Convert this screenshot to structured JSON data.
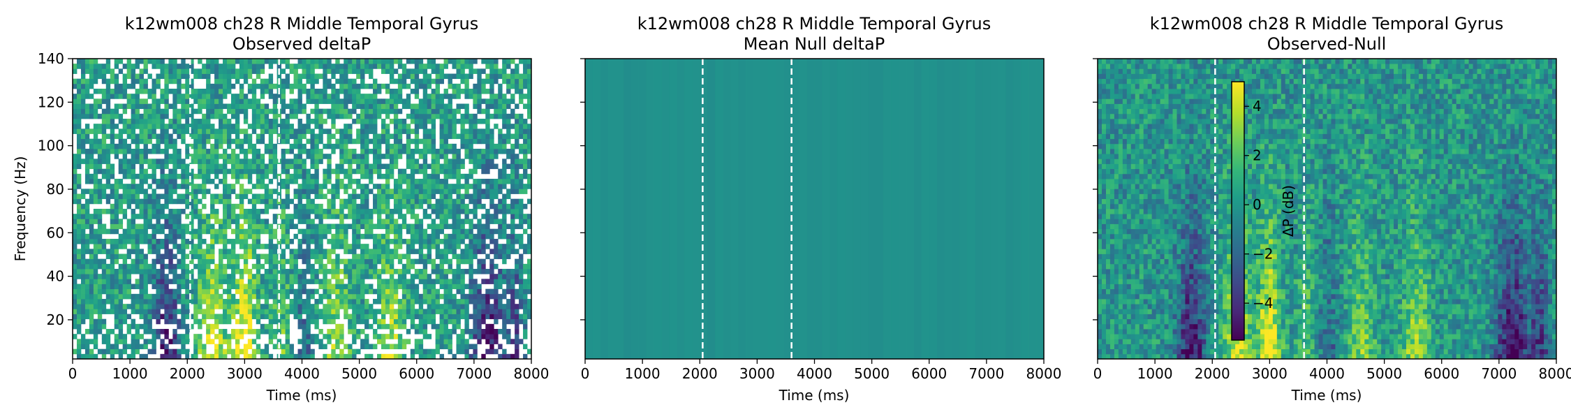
{
  "chart_data": [
    {
      "type": "heatmap",
      "title": "k12wm008 ch28 R Middle Temporal Gyrus",
      "subtitle": "Observed deltaP",
      "xlabel": "Time (ms)",
      "ylabel": "Frequency (Hz)",
      "xlim": [
        0,
        8000
      ],
      "ylim": [
        2,
        140
      ],
      "xticks": [
        "0",
        "1000",
        "2000",
        "3000",
        "4000",
        "5000",
        "6000",
        "7000",
        "8000"
      ],
      "yticks": [
        "20",
        "40",
        "60",
        "80",
        "100",
        "120",
        "140"
      ],
      "event_markers_ms": [
        2050,
        3600
      ],
      "colormap": "viridis",
      "masked_non_significant": true
    },
    {
      "type": "heatmap",
      "title": "k12wm008 ch28 R Middle Temporal Gyrus",
      "subtitle": "Mean Null deltaP",
      "xlabel": "Time (ms)",
      "ylabel": "",
      "xlim": [
        0,
        8000
      ],
      "ylim": [
        2,
        140
      ],
      "xticks": [
        "0",
        "1000",
        "2000",
        "3000",
        "4000",
        "5000",
        "6000",
        "7000",
        "8000"
      ],
      "yticks": [],
      "event_markers_ms": [
        2050,
        3600
      ],
      "colormap": "viridis",
      "uniform_value_db": 0
    },
    {
      "type": "heatmap",
      "title": "k12wm008 ch28 R Middle Temporal Gyrus",
      "subtitle": "Observed-Null",
      "xlabel": "Time (ms)",
      "ylabel": "",
      "xlim": [
        0,
        8000
      ],
      "ylim": [
        2,
        140
      ],
      "xticks": [
        "0",
        "1000",
        "2000",
        "3000",
        "4000",
        "5000",
        "6000",
        "7000",
        "8000"
      ],
      "yticks": [],
      "event_markers_ms": [
        2050,
        3600
      ],
      "colormap": "viridis",
      "colorbar": {
        "label": "ΔP (dB)",
        "range": [
          -5.5,
          5
        ],
        "ticks": [
          "−4",
          "−2",
          "0",
          "2",
          "4"
        ]
      }
    }
  ],
  "colors": {
    "viridis": [
      "#440154",
      "#482878",
      "#3e4989",
      "#31688e",
      "#26828e",
      "#1f9e89",
      "#35b779",
      "#6ece58",
      "#b5de2b",
      "#fde725"
    ],
    "null_fill": "#23898e",
    "marker": "#ffffff"
  }
}
